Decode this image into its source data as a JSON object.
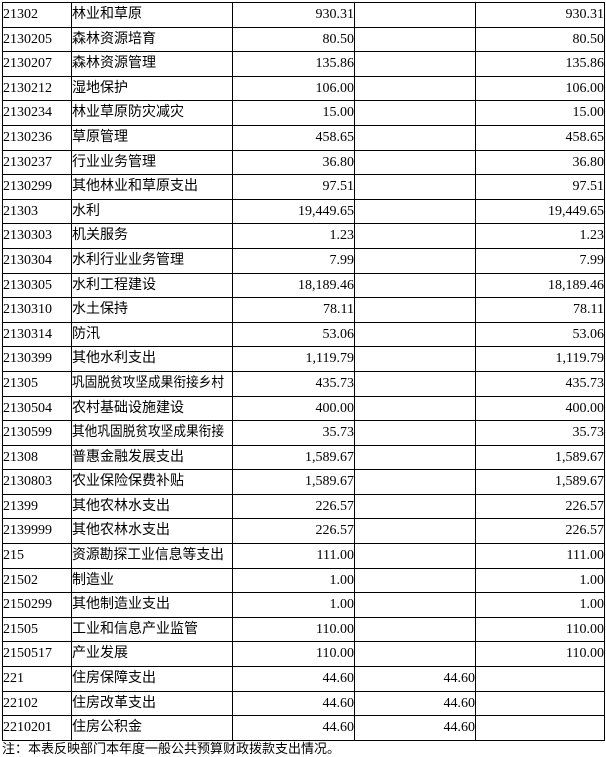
{
  "colors": {
    "border": "#000000",
    "text": "#000000",
    "background": "#ffffff"
  },
  "table": {
    "rows": [
      {
        "code": "21302",
        "name": "林业和草原",
        "amounts": [
          "930.31",
          "",
          "930.31"
        ]
      },
      {
        "code": "2130205",
        "name": "森林资源培育",
        "amounts": [
          "80.50",
          "",
          "80.50"
        ]
      },
      {
        "code": "2130207",
        "name": "森林资源管理",
        "amounts": [
          "135.86",
          "",
          "135.86"
        ]
      },
      {
        "code": "2130212",
        "name": "湿地保护",
        "amounts": [
          "106.00",
          "",
          "106.00"
        ]
      },
      {
        "code": "2130234",
        "name": "林业草原防灾减灾",
        "amounts": [
          "15.00",
          "",
          "15.00"
        ]
      },
      {
        "code": "2130236",
        "name": "草原管理",
        "amounts": [
          "458.65",
          "",
          "458.65"
        ]
      },
      {
        "code": "2130237",
        "name": "行业业务管理",
        "amounts": [
          "36.80",
          "",
          "36.80"
        ]
      },
      {
        "code": "2130299",
        "name": "其他林业和草原支出",
        "amounts": [
          "97.51",
          "",
          "97.51"
        ]
      },
      {
        "code": "21303",
        "name": "水利",
        "amounts": [
          "19,449.65",
          "",
          "19,449.65"
        ]
      },
      {
        "code": "2130303",
        "name": "机关服务",
        "amounts": [
          "1.23",
          "",
          "1.23"
        ]
      },
      {
        "code": "2130304",
        "name": "水利行业业务管理",
        "amounts": [
          "7.99",
          "",
          "7.99"
        ]
      },
      {
        "code": "2130305",
        "name": "水利工程建设",
        "amounts": [
          "18,189.46",
          "",
          "18,189.46"
        ]
      },
      {
        "code": "2130310",
        "name": "水土保持",
        "amounts": [
          "78.11",
          "",
          "78.11"
        ]
      },
      {
        "code": "2130314",
        "name": "防汛",
        "amounts": [
          "53.06",
          "",
          "53.06"
        ]
      },
      {
        "code": "2130399",
        "name": "其他水利支出",
        "amounts": [
          "1,119.79",
          "",
          "1,119.79"
        ]
      },
      {
        "code": "21305",
        "name": "巩固脱贫攻坚成果衔接乡村",
        "amounts": [
          "435.73",
          "",
          "435.73"
        ]
      },
      {
        "code": "2130504",
        "name": "农村基础设施建设",
        "amounts": [
          "400.00",
          "",
          "400.00"
        ]
      },
      {
        "code": "2130599",
        "name": "其他巩固脱贫攻坚成果衔接",
        "amounts": [
          "35.73",
          "",
          "35.73"
        ]
      },
      {
        "code": "21308",
        "name": "普惠金融发展支出",
        "amounts": [
          "1,589.67",
          "",
          "1,589.67"
        ]
      },
      {
        "code": "2130803",
        "name": "农业保险保费补贴",
        "amounts": [
          "1,589.67",
          "",
          "1,589.67"
        ]
      },
      {
        "code": "21399",
        "name": "其他农林水支出",
        "amounts": [
          "226.57",
          "",
          "226.57"
        ]
      },
      {
        "code": "2139999",
        "name": "其他农林水支出",
        "amounts": [
          "226.57",
          "",
          "226.57"
        ]
      },
      {
        "code": "215",
        "name": "资源勘探工业信息等支出",
        "amounts": [
          "111.00",
          "",
          "111.00"
        ]
      },
      {
        "code": "21502",
        "name": "制造业",
        "amounts": [
          "1.00",
          "",
          "1.00"
        ]
      },
      {
        "code": "2150299",
        "name": "其他制造业支出",
        "amounts": [
          "1.00",
          "",
          "1.00"
        ]
      },
      {
        "code": "21505",
        "name": "工业和信息产业监管",
        "amounts": [
          "110.00",
          "",
          "110.00"
        ]
      },
      {
        "code": "2150517",
        "name": "产业发展",
        "amounts": [
          "110.00",
          "",
          "110.00"
        ]
      },
      {
        "code": "221",
        "name": "住房保障支出",
        "amounts": [
          "44.60",
          "44.60",
          ""
        ]
      },
      {
        "code": "22102",
        "name": "住房改革支出",
        "amounts": [
          "44.60",
          "44.60",
          ""
        ]
      },
      {
        "code": "2210201",
        "name": "住房公积金",
        "amounts": [
          "44.60",
          "44.60",
          ""
        ]
      }
    ]
  },
  "footer": {
    "note": "注：本表反映部门本年度一般公共预算财政拨款支出情况。"
  }
}
